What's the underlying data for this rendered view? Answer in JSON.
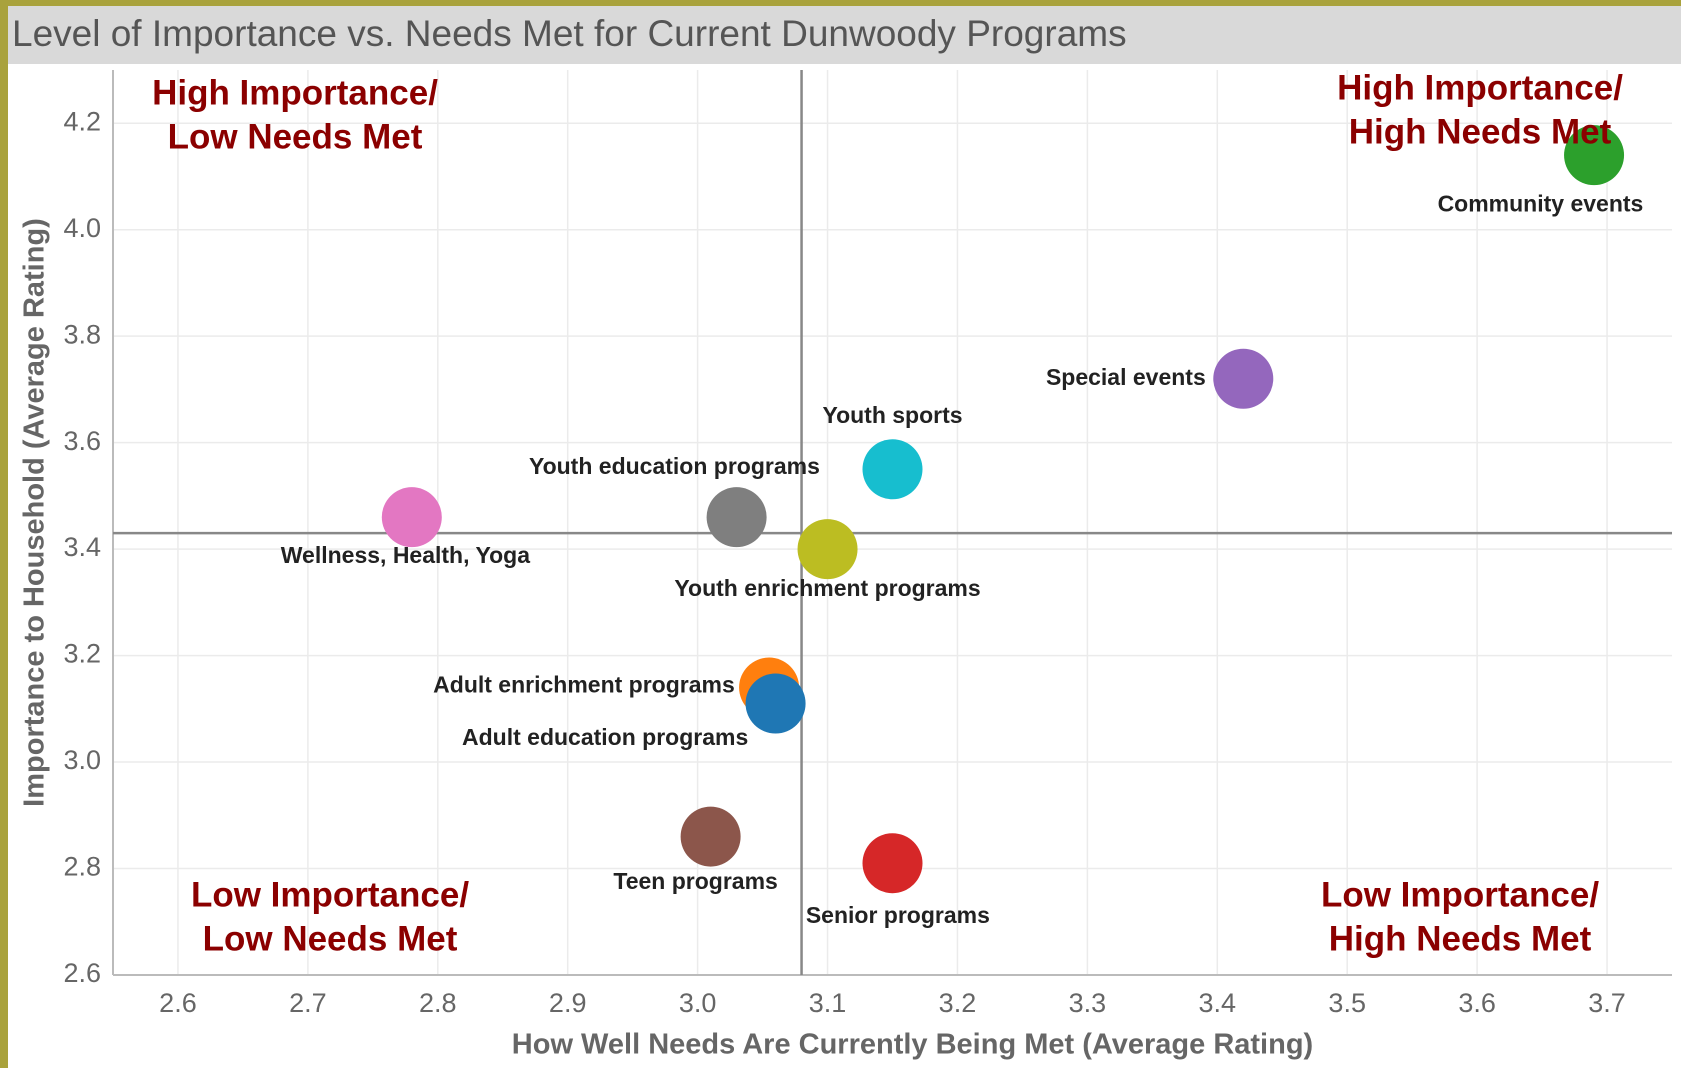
{
  "chart_data": {
    "type": "scatter",
    "title": "Level of Importance vs. Needs Met for Current Dunwoody Programs",
    "x_label": "How Well Needs Are Currently Being Met (Average Rating)",
    "y_label": "Importance to Household (Average Rating)",
    "xlim": [
      2.55,
      3.75
    ],
    "ylim": [
      2.6,
      4.3
    ],
    "xticks": [
      {
        "value": 2.6,
        "label": "2.6"
      },
      {
        "value": 2.7,
        "label": "2.7"
      },
      {
        "value": 2.8,
        "label": "2.8"
      },
      {
        "value": 2.9,
        "label": "2.9"
      },
      {
        "value": 3.0,
        "label": "3.0"
      },
      {
        "value": 3.1,
        "label": "3.1"
      },
      {
        "value": 3.2,
        "label": "3.2"
      },
      {
        "value": 3.3,
        "label": "3.3"
      },
      {
        "value": 3.4,
        "label": "3.4"
      },
      {
        "value": 3.5,
        "label": "3.5"
      },
      {
        "value": 3.6,
        "label": "3.6"
      },
      {
        "value": 3.7,
        "label": "3.7"
      }
    ],
    "yticks": [
      {
        "value": 2.6,
        "label": "2.6"
      },
      {
        "value": 2.8,
        "label": "2.8"
      },
      {
        "value": 3.0,
        "label": "3.0"
      },
      {
        "value": 3.2,
        "label": "3.2"
      },
      {
        "value": 3.4,
        "label": "3.4"
      },
      {
        "value": 3.6,
        "label": "3.6"
      },
      {
        "value": 3.8,
        "label": "3.8"
      },
      {
        "value": 4.0,
        "label": "4.0"
      },
      {
        "value": 4.2,
        "label": "4.2"
      }
    ],
    "grid": true,
    "reference_lines": {
      "x": 3.08,
      "y": 3.43
    },
    "series": [
      {
        "name": "Community events",
        "color": "#2ca02c",
        "x": 3.69,
        "y": 4.14
      },
      {
        "name": "Special events",
        "color": "#9467bd",
        "x": 3.42,
        "y": 3.72
      },
      {
        "name": "Youth sports",
        "color": "#17becf",
        "x": 3.15,
        "y": 3.55
      },
      {
        "name": "Youth education programs",
        "color": "#7f7f7f",
        "x": 3.03,
        "y": 3.46
      },
      {
        "name": "Wellness, Health, Yoga",
        "color": "#e377c2",
        "x": 2.78,
        "y": 3.46
      },
      {
        "name": "Youth enrichment programs",
        "color": "#bcbd22",
        "x": 3.1,
        "y": 3.4
      },
      {
        "name": "Adult enrichment programs",
        "color": "#ff7f0e",
        "x": 3.055,
        "y": 3.14
      },
      {
        "name": "Adult education programs",
        "color": "#1f77b4",
        "x": 3.06,
        "y": 3.11
      },
      {
        "name": "Teen programs",
        "color": "#8c564b",
        "x": 3.01,
        "y": 2.86
      },
      {
        "name": "Senior programs",
        "color": "#d62728",
        "x": 3.15,
        "y": 2.81
      }
    ],
    "annotations": [
      {
        "lines": [
          "High Importance/",
          "Low Needs Met"
        ]
      },
      {
        "lines": [
          "High Importance/",
          "High Needs Met"
        ]
      },
      {
        "lines": [
          "Low Importance/",
          "Low Needs Met"
        ]
      },
      {
        "lines": [
          "Low Importance/",
          "High Needs Met"
        ]
      }
    ],
    "annotation_color": "#8b0000"
  }
}
